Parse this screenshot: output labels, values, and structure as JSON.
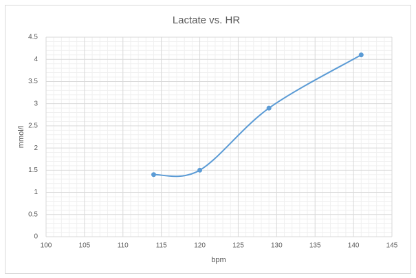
{
  "chart_data": {
    "type": "scatter-smooth",
    "title": "Lactate vs. HR",
    "x_label": "bpm",
    "y_label": "mmol/l",
    "x": [
      114,
      120,
      129,
      141
    ],
    "values": [
      1.4,
      1.5,
      2.9,
      4.1
    ],
    "color": "#5b9bd5",
    "xlim": [
      100,
      145
    ],
    "xticks": [
      100,
      105,
      110,
      115,
      120,
      125,
      130,
      135,
      140,
      145
    ],
    "ylim": [
      0,
      4.5
    ],
    "yticks": [
      0,
      0.5,
      1,
      1.5,
      2,
      2.5,
      3,
      3.5,
      4,
      4.5
    ],
    "grid": true,
    "minor_grid": true
  }
}
